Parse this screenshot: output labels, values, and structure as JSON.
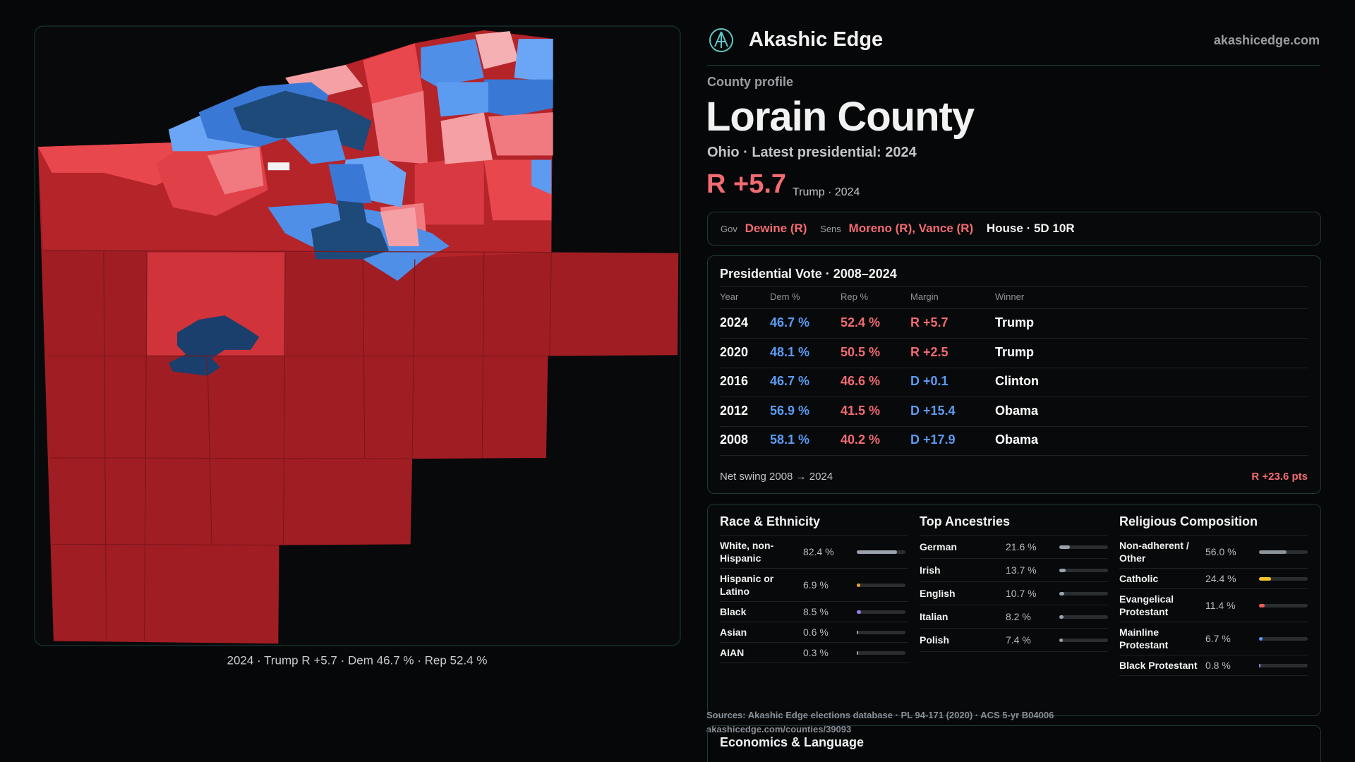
{
  "header": {
    "brand": "Akashic Edge",
    "site": "akashicedge.com"
  },
  "map": {
    "caption": "2024 · Trump R +5.7 · Dem 46.7 % · Rep 52.4 %"
  },
  "profile": {
    "kicker": "County profile",
    "name": "Lorain County",
    "subtitle": "Ohio · Latest presidential: 2024",
    "margin": "R +5.7",
    "margin_note": "Trump · 2024"
  },
  "officials": {
    "gov_label": "Gov",
    "gov": "Dewine (R)",
    "sens_label": "Sens",
    "sens": "Moreno (R), Vance (R)",
    "house": "House · 5D 10R"
  },
  "table": {
    "title": "Presidential Vote · 2008–2024",
    "columns": [
      "Year",
      "Dem %",
      "Rep %",
      "Margin",
      "Winner"
    ],
    "rows": [
      [
        "2024",
        "46.7 %",
        "52.4 %",
        "R +5.7",
        "Trump"
      ],
      [
        "2020",
        "48.1 %",
        "50.5 %",
        "R +2.5",
        "Trump"
      ],
      [
        "2016",
        "46.7 %",
        "46.6 %",
        "D +0.1",
        "Clinton"
      ],
      [
        "2012",
        "56.9 %",
        "41.5 %",
        "D +15.4",
        "Obama"
      ],
      [
        "2008",
        "58.1 %",
        "40.2 %",
        "D +17.9",
        "Obama"
      ]
    ],
    "margin_colors": [
      "#f26b72",
      "#f26b72",
      "#5b9bf5",
      "#5b9bf5",
      "#5b9bf5"
    ],
    "swing_label": "Net swing 2008 → 2024",
    "swing": "R +23.6 pts"
  },
  "demographics": [
    {
      "title": "Race & Ethnicity",
      "items": [
        {
          "name": "White, non-Hispanic",
          "value": 82.4,
          "label": "82.4 %",
          "color": "#9aa3ad"
        },
        {
          "name": "Hispanic or Latino",
          "value": 6.9,
          "label": "6.9 %",
          "color": "#f0a030"
        },
        {
          "name": "Black",
          "value": 8.5,
          "label": "8.5 %",
          "color": "#9b7ee8"
        },
        {
          "name": "Asian",
          "value": 0.6,
          "label": "0.6 %",
          "color": "#9aa3ad"
        },
        {
          "name": "AIAN",
          "value": 0.3,
          "label": "0.3 %",
          "color": "#9aa3ad"
        }
      ]
    },
    {
      "title": "Top Ancestries",
      "items": [
        {
          "name": "German",
          "value": 21.6,
          "label": "21.6 %",
          "color": "#9aa3ad"
        },
        {
          "name": "Irish",
          "value": 13.7,
          "label": "13.7 %",
          "color": "#9aa3ad"
        },
        {
          "name": "English",
          "value": 10.7,
          "label": "10.7 %",
          "color": "#9aa3ad"
        },
        {
          "name": "Italian",
          "value": 8.2,
          "label": "8.2 %",
          "color": "#9aa3ad"
        },
        {
          "name": "Polish",
          "value": 7.4,
          "label": "7.4 %",
          "color": "#9aa3ad"
        }
      ]
    },
    {
      "title": "Religious Composition",
      "items": [
        {
          "name": "Non-adherent / Other",
          "value": 56.0,
          "label": "56.0 %",
          "color": "#8a929c"
        },
        {
          "name": "Catholic",
          "value": 24.4,
          "label": "24.4 %",
          "color": "#f2c230"
        },
        {
          "name": "Evangelical Protestant",
          "value": 11.4,
          "label": "11.4 %",
          "color": "#ef5a5a"
        },
        {
          "name": "Mainline Protestant",
          "value": 6.7,
          "label": "6.7 %",
          "color": "#5b9bf5"
        },
        {
          "name": "Black Protestant",
          "value": 0.8,
          "label": "0.8 %",
          "color": "#9b7ee8"
        }
      ]
    }
  ],
  "sources": {
    "line1": "Sources: Akashic Edge elections database · PL 94-171 (2020) · ACS 5-yr B04006",
    "line2": "akashicedge.com/counties/39093"
  },
  "economics": {
    "title": "Economics & Language"
  }
}
